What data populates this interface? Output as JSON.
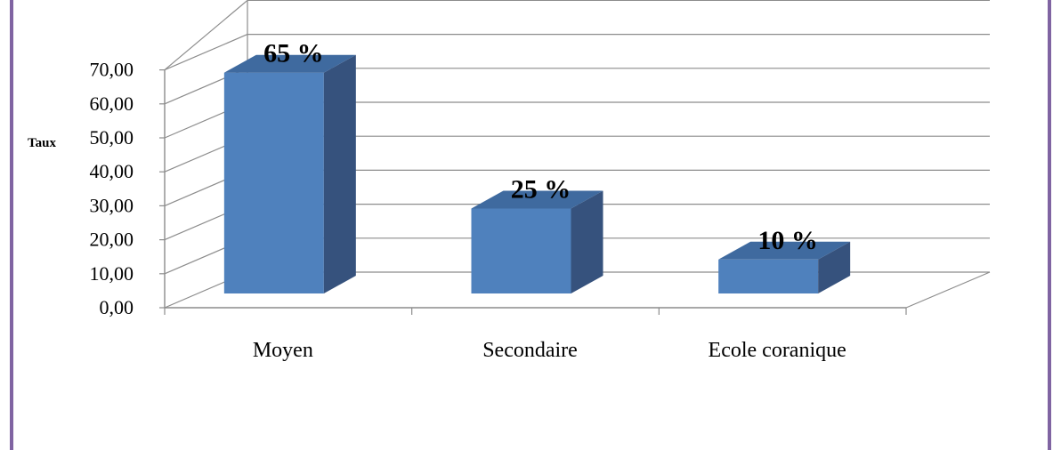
{
  "chart_data": {
    "type": "bar",
    "categories": [
      "Moyen",
      "Secondaire",
      "Ecole coranique"
    ],
    "values": [
      65,
      25,
      10
    ],
    "data_labels": [
      "65 %",
      "25 %",
      "10 %"
    ],
    "ylabel": "Taux",
    "ylim": [
      0,
      70
    ],
    "yticks": [
      0,
      10,
      20,
      30,
      40,
      50,
      60,
      70
    ],
    "ytick_labels": [
      "0,00",
      "10,00",
      "20,00",
      "30,00",
      "40,00",
      "50,00",
      "60,00",
      "70,00"
    ],
    "grid": true,
    "style": "3d",
    "colors": {
      "front": "#4f81bd",
      "side": "#36527d",
      "top": "#3f6a9f",
      "grid": "#8c8c8c",
      "frame": "#8064a2"
    }
  }
}
